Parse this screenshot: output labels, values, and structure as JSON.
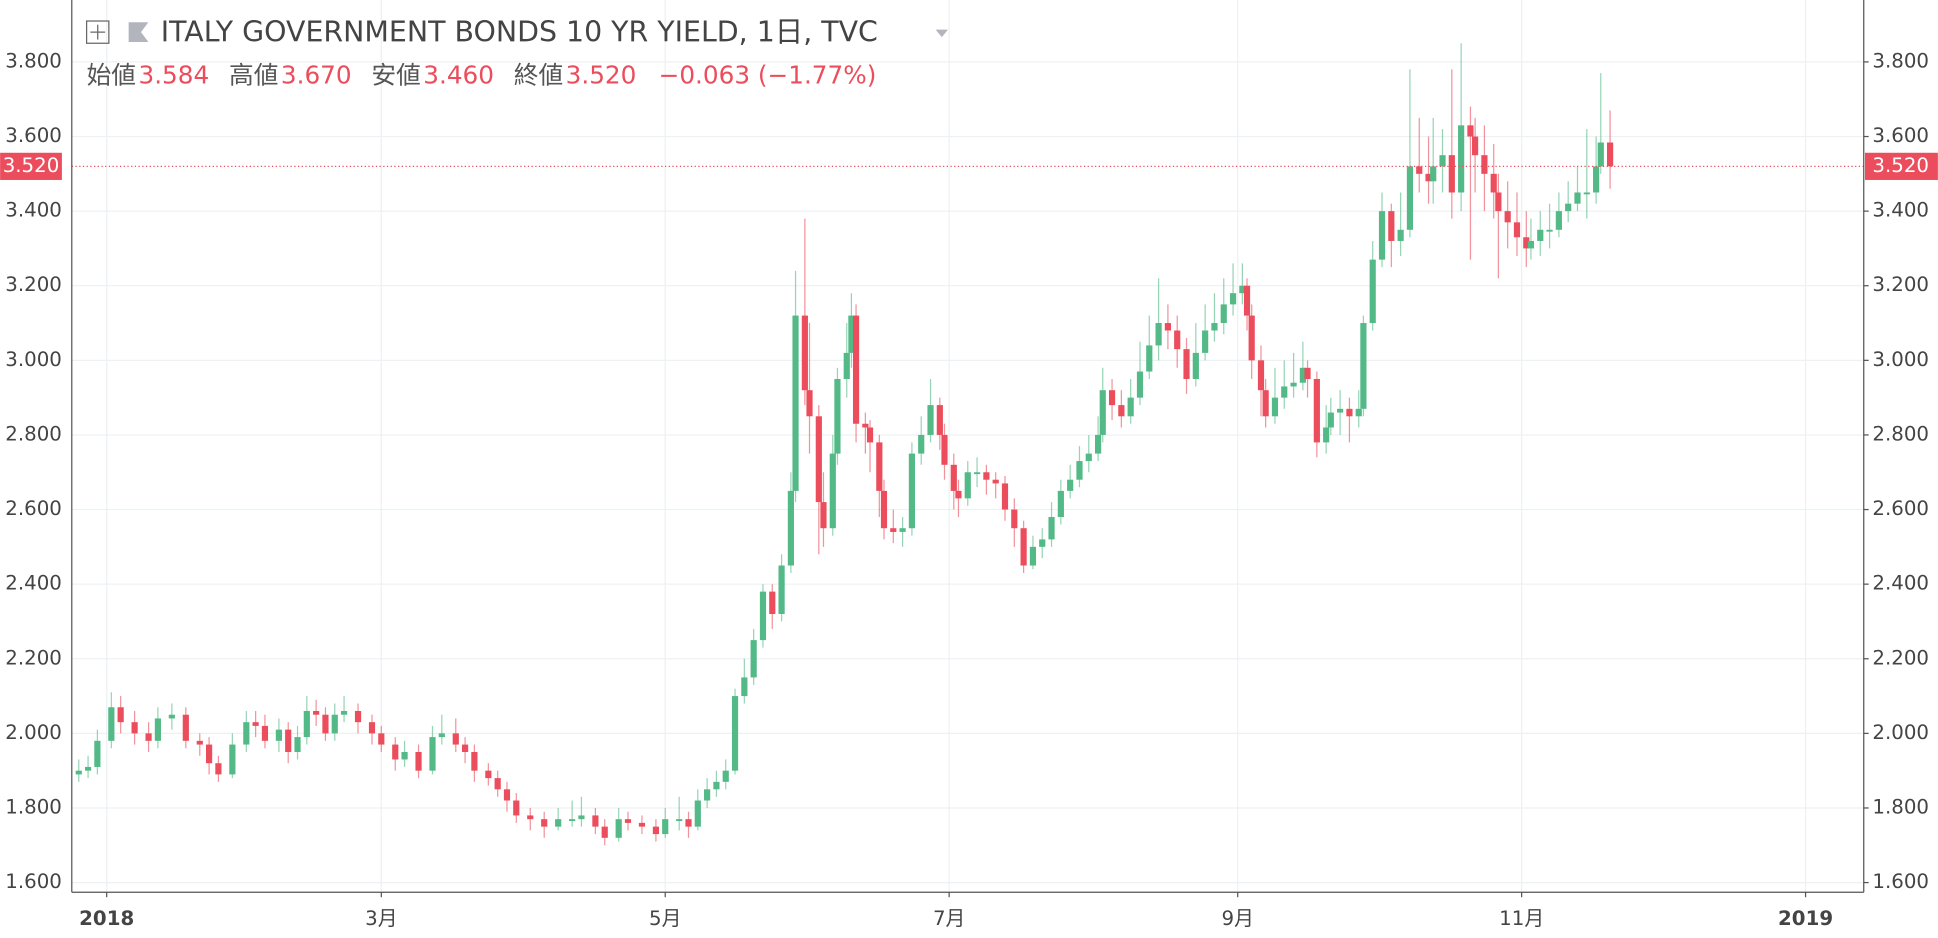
{
  "header": {
    "title": "ITALY GOVERNMENT BONDS 10 YR YIELD, 1日, TVC",
    "ohlc": [
      {
        "label": "始値",
        "value": "3.584"
      },
      {
        "label": "高値",
        "value": "3.670"
      },
      {
        "label": "安値",
        "value": "3.460"
      },
      {
        "label": "終値",
        "value": "3.520"
      }
    ],
    "change": "−0.063 (−1.77%)"
  },
  "chart_data": {
    "type": "candlestick",
    "up_color": "#53b987",
    "down_color": "#eb4d5c",
    "grid": true,
    "x": [
      -6,
      -4,
      -2,
      1,
      3,
      6,
      9,
      11,
      14,
      17,
      20,
      22,
      24,
      27,
      30,
      32,
      34,
      37,
      39,
      41,
      43,
      45,
      47,
      49,
      51,
      54,
      57,
      59,
      62,
      64,
      67,
      70,
      72,
      75,
      77,
      79,
      82,
      84,
      86,
      88,
      91,
      94,
      97,
      100,
      102,
      105,
      107,
      110,
      112,
      115,
      118,
      120,
      123,
      125,
      127,
      129,
      131,
      133,
      135,
      137,
      139,
      141,
      143,
      145,
      147,
      148,
      150,
      151,
      153,
      154,
      156,
      157,
      159,
      160,
      161,
      163,
      164,
      166,
      167,
      169,
      171,
      173,
      175,
      177,
      179,
      180,
      182,
      183,
      185,
      187,
      189,
      191,
      193,
      195,
      197,
      199,
      201,
      203,
      205,
      207,
      209,
      211,
      213,
      214,
      216,
      218,
      220,
      222,
      224,
      226,
      228,
      230,
      232,
      234,
      236,
      238,
      240,
      242,
      244,
      245,
      246,
      248,
      249,
      251,
      253,
      255,
      257,
      258,
      260,
      262,
      263,
      265,
      267,
      269,
      270,
      272,
      274,
      276,
      278,
      280,
      282,
      284,
      285,
      287,
      289,
      291,
      293,
      294,
      296,
      298,
      299,
      301,
      303,
      305,
      306,
      308,
      310,
      312,
      314,
      316,
      318,
      320,
      321,
      323
    ],
    "open": [
      1.89,
      1.9,
      1.91,
      1.98,
      2.07,
      2.03,
      2.0,
      1.98,
      2.04,
      2.05,
      1.98,
      1.97,
      1.92,
      1.89,
      1.97,
      2.03,
      2.02,
      1.98,
      2.01,
      1.95,
      1.99,
      2.06,
      2.05,
      2.0,
      2.05,
      2.06,
      2.03,
      2.0,
      1.97,
      1.93,
      1.95,
      1.9,
      1.99,
      2.0,
      1.97,
      1.95,
      1.9,
      1.88,
      1.85,
      1.82,
      1.78,
      1.77,
      1.75,
      1.77,
      1.77,
      1.78,
      1.75,
      1.72,
      1.77,
      1.76,
      1.75,
      1.73,
      1.77,
      1.77,
      1.75,
      1.82,
      1.85,
      1.87,
      1.9,
      2.1,
      2.15,
      2.25,
      2.38,
      2.32,
      2.45,
      2.65,
      3.12,
      2.92,
      2.85,
      2.62,
      2.55,
      2.75,
      2.95,
      3.02,
      3.12,
      2.83,
      2.82,
      2.78,
      2.65,
      2.55,
      2.54,
      2.55,
      2.75,
      2.8,
      2.88,
      2.8,
      2.72,
      2.65,
      2.63,
      2.7,
      2.7,
      2.68,
      2.67,
      2.6,
      2.55,
      2.45,
      2.5,
      2.52,
      2.58,
      2.65,
      2.68,
      2.73,
      2.75,
      2.8,
      2.92,
      2.88,
      2.85,
      2.9,
      2.97,
      3.04,
      3.1,
      3.08,
      3.03,
      2.95,
      3.02,
      3.08,
      3.1,
      3.15,
      3.18,
      3.2,
      3.12,
      3.0,
      2.92,
      2.85,
      2.9,
      2.93,
      2.94,
      2.98,
      2.95,
      2.78,
      2.82,
      2.86,
      2.87,
      2.85,
      2.87,
      3.1,
      3.27,
      3.4,
      3.32,
      3.35,
      3.52,
      3.5,
      3.48,
      3.52,
      3.55,
      3.45,
      3.63,
      3.6,
      3.55,
      3.5,
      3.45,
      3.4,
      3.37,
      3.33,
      3.3,
      3.32,
      3.35,
      3.35,
      3.4,
      3.42,
      3.45,
      3.45,
      3.52,
      3.584
    ],
    "high": [
      1.93,
      1.94,
      2.01,
      2.11,
      2.1,
      2.06,
      2.03,
      2.07,
      2.08,
      2.07,
      2.0,
      1.99,
      1.94,
      2.0,
      2.06,
      2.06,
      2.05,
      2.04,
      2.03,
      2.02,
      2.1,
      2.09,
      2.07,
      2.08,
      2.1,
      2.08,
      2.05,
      2.02,
      1.99,
      1.98,
      1.97,
      2.02,
      2.05,
      2.04,
      1.99,
      1.97,
      1.92,
      1.9,
      1.87,
      1.84,
      1.8,
      1.79,
      1.8,
      1.82,
      1.83,
      1.8,
      1.77,
      1.8,
      1.79,
      1.78,
      1.77,
      1.8,
      1.83,
      1.79,
      1.85,
      1.88,
      1.9,
      1.93,
      2.12,
      2.2,
      2.28,
      2.4,
      2.4,
      2.48,
      2.7,
      3.24,
      3.38,
      3.1,
      2.88,
      2.7,
      2.8,
      2.98,
      3.1,
      3.18,
      3.15,
      2.86,
      2.84,
      2.8,
      2.68,
      2.6,
      2.58,
      2.78,
      2.85,
      2.95,
      2.9,
      2.83,
      2.75,
      2.68,
      2.73,
      2.74,
      2.72,
      2.7,
      2.69,
      2.63,
      2.57,
      2.53,
      2.55,
      2.62,
      2.68,
      2.72,
      2.77,
      2.8,
      2.85,
      2.98,
      2.95,
      2.92,
      2.95,
      3.05,
      3.12,
      3.22,
      3.15,
      3.12,
      3.06,
      3.1,
      3.15,
      3.18,
      3.22,
      3.26,
      3.26,
      3.22,
      3.15,
      3.04,
      2.95,
      2.98,
      3.0,
      3.02,
      3.05,
      3.0,
      2.97,
      2.88,
      2.9,
      2.92,
      2.9,
      2.92,
      3.12,
      3.32,
      3.45,
      3.42,
      3.45,
      3.78,
      3.65,
      3.6,
      3.65,
      3.62,
      3.78,
      3.85,
      3.68,
      3.65,
      3.63,
      3.58,
      3.5,
      3.48,
      3.45,
      3.4,
      3.38,
      3.4,
      3.42,
      3.45,
      3.48,
      3.52,
      3.62,
      3.6,
      3.77,
      3.67
    ],
    "low": [
      1.87,
      1.88,
      1.89,
      1.96,
      2.0,
      1.97,
      1.95,
      1.96,
      2.01,
      1.96,
      1.94,
      1.89,
      1.87,
      1.88,
      1.95,
      1.99,
      1.96,
      1.95,
      1.92,
      1.93,
      1.97,
      2.02,
      1.98,
      1.98,
      2.03,
      2.0,
      1.97,
      1.95,
      1.9,
      1.91,
      1.88,
      1.89,
      1.97,
      1.95,
      1.92,
      1.87,
      1.86,
      1.83,
      1.79,
      1.76,
      1.74,
      1.72,
      1.74,
      1.75,
      1.75,
      1.73,
      1.7,
      1.71,
      1.74,
      1.73,
      1.71,
      1.72,
      1.74,
      1.72,
      1.74,
      1.8,
      1.83,
      1.85,
      1.89,
      2.08,
      2.13,
      2.23,
      2.28,
      2.3,
      2.43,
      2.62,
      2.88,
      2.75,
      2.48,
      2.5,
      2.53,
      2.72,
      2.9,
      2.98,
      2.78,
      2.75,
      2.7,
      2.58,
      2.52,
      2.51,
      2.5,
      2.53,
      2.72,
      2.78,
      2.76,
      2.68,
      2.6,
      2.58,
      2.61,
      2.66,
      2.64,
      2.63,
      2.57,
      2.5,
      2.43,
      2.44,
      2.47,
      2.5,
      2.56,
      2.63,
      2.66,
      2.7,
      2.73,
      2.78,
      2.84,
      2.82,
      2.83,
      2.88,
      2.95,
      3.0,
      3.03,
      2.98,
      2.91,
      2.93,
      3.0,
      3.05,
      3.07,
      3.12,
      3.15,
      3.08,
      2.95,
      2.85,
      2.82,
      2.83,
      2.87,
      2.9,
      2.92,
      2.9,
      2.74,
      2.75,
      2.8,
      2.8,
      2.78,
      2.82,
      2.85,
      3.08,
      3.25,
      3.25,
      3.28,
      3.33,
      3.45,
      3.42,
      3.42,
      3.45,
      3.38,
      3.4,
      3.27,
      3.45,
      3.4,
      3.38,
      3.22,
      3.3,
      3.28,
      3.25,
      3.27,
      3.28,
      3.3,
      3.33,
      3.37,
      3.4,
      3.38,
      3.42,
      3.5,
      3.46
    ],
    "close": [
      1.9,
      1.91,
      1.98,
      2.07,
      2.03,
      2.0,
      1.98,
      2.04,
      2.05,
      1.98,
      1.97,
      1.92,
      1.89,
      1.97,
      2.03,
      2.02,
      1.98,
      2.01,
      1.95,
      1.99,
      2.06,
      2.05,
      2.0,
      2.05,
      2.06,
      2.03,
      2.0,
      1.97,
      1.93,
      1.95,
      1.9,
      1.99,
      2.0,
      1.97,
      1.95,
      1.9,
      1.88,
      1.85,
      1.82,
      1.78,
      1.77,
      1.75,
      1.77,
      1.77,
      1.78,
      1.75,
      1.72,
      1.77,
      1.76,
      1.75,
      1.73,
      1.77,
      1.77,
      1.75,
      1.82,
      1.85,
      1.87,
      1.9,
      2.1,
      2.15,
      2.25,
      2.38,
      2.32,
      2.45,
      2.65,
      3.12,
      2.92,
      2.85,
      2.62,
      2.55,
      2.75,
      2.95,
      3.02,
      3.12,
      2.83,
      2.82,
      2.78,
      2.65,
      2.55,
      2.54,
      2.55,
      2.75,
      2.8,
      2.88,
      2.8,
      2.72,
      2.65,
      2.63,
      2.7,
      2.7,
      2.68,
      2.67,
      2.6,
      2.55,
      2.45,
      2.5,
      2.52,
      2.58,
      2.65,
      2.68,
      2.73,
      2.75,
      2.8,
      2.92,
      2.88,
      2.85,
      2.9,
      2.97,
      3.04,
      3.1,
      3.08,
      3.03,
      2.95,
      3.02,
      3.08,
      3.1,
      3.15,
      3.18,
      3.2,
      3.12,
      3.0,
      2.92,
      2.85,
      2.9,
      2.93,
      2.94,
      2.98,
      2.95,
      2.78,
      2.82,
      2.86,
      2.87,
      2.85,
      2.87,
      3.1,
      3.27,
      3.4,
      3.32,
      3.35,
      3.52,
      3.5,
      3.48,
      3.52,
      3.55,
      3.45,
      3.63,
      3.6,
      3.55,
      3.5,
      3.45,
      3.4,
      3.37,
      3.33,
      3.3,
      3.32,
      3.35,
      3.35,
      3.4,
      3.42,
      3.45,
      3.45,
      3.52,
      3.584,
      3.52
    ],
    "xlim": [
      -7.5,
      377.5
    ],
    "xticks": [
      {
        "value": 0,
        "label": "2018"
      },
      {
        "value": 59,
        "label": "3月"
      },
      {
        "value": 120,
        "label": "5月"
      },
      {
        "value": 181,
        "label": "7月"
      },
      {
        "value": 243,
        "label": "9月"
      },
      {
        "value": 304,
        "label": "11月"
      },
      {
        "value": 365,
        "label": "2019"
      }
    ],
    "ylim": [
      1.574,
      3.966
    ],
    "yticks": [
      {
        "value": 1.6,
        "label": "1.600"
      },
      {
        "value": 1.8,
        "label": "1.800"
      },
      {
        "value": 2.0,
        "label": "2.000"
      },
      {
        "value": 2.2,
        "label": "2.200"
      },
      {
        "value": 2.4,
        "label": "2.400"
      },
      {
        "value": 2.6,
        "label": "2.600"
      },
      {
        "value": 2.8,
        "label": "2.800"
      },
      {
        "value": 3.0,
        "label": "3.000"
      },
      {
        "value": 3.2,
        "label": "3.200"
      },
      {
        "value": 3.4,
        "label": "3.400"
      },
      {
        "value": 3.6,
        "label": "3.600"
      },
      {
        "value": 3.8,
        "label": "3.800"
      }
    ],
    "last_price": {
      "value": 3.52,
      "label": "3.520"
    }
  }
}
